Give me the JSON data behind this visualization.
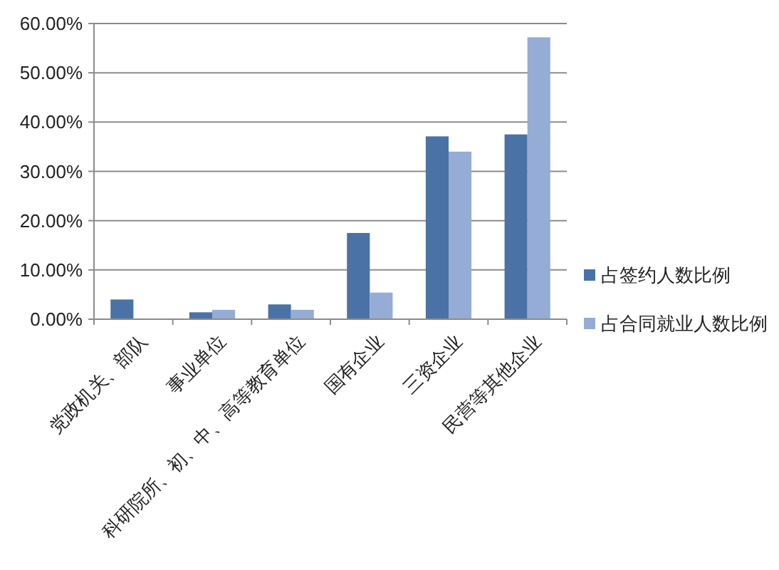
{
  "chart_data": {
    "type": "bar",
    "categories": [
      "党政机关、部队",
      "事业单位",
      "科研院所、初、中、高等教育单位",
      "国有企业",
      "三资企业",
      "民营等其他企业"
    ],
    "series": [
      {
        "name": "占签约人数比例",
        "color": "#4a72a6",
        "values": [
          4.0,
          1.4,
          3.0,
          17.5,
          37.1,
          37.5
        ]
      },
      {
        "name": "占合同就业人数比例",
        "color": "#95acd4",
        "values": [
          null,
          1.9,
          1.9,
          5.4,
          34.0,
          57.2
        ]
      }
    ],
    "ylim": [
      0,
      60
    ],
    "yticks": [
      {
        "value": 0,
        "label": "0.00%"
      },
      {
        "value": 10,
        "label": "10.00%"
      },
      {
        "value": 20,
        "label": "20.00%"
      },
      {
        "value": 30,
        "label": "30.00%"
      },
      {
        "value": 40,
        "label": "40.00%"
      },
      {
        "value": 50,
        "label": "50.00%"
      },
      {
        "value": 60,
        "label": "60.00%"
      }
    ],
    "grid": "y",
    "legend": "right"
  }
}
